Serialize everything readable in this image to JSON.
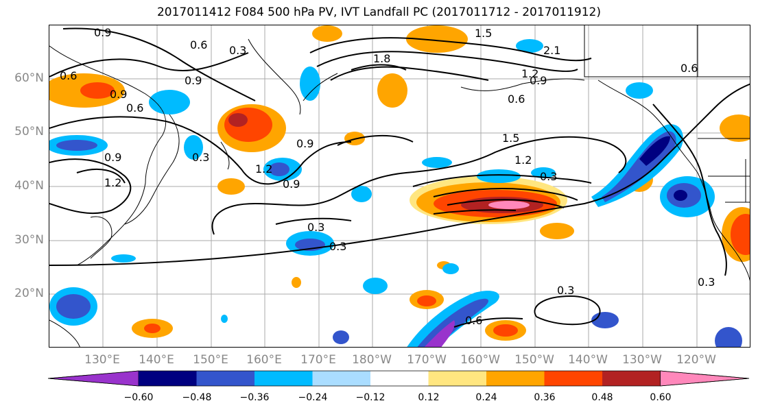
{
  "title": "2017011412 F084 500 hPa PV, IVT Landfall PC (2017011712 - 2017011912)",
  "lat_labels": [
    "60°N",
    "50°N",
    "40°N",
    "30°N",
    "20°N"
  ],
  "lon_labels": [
    "130°E",
    "140°E",
    "150°E",
    "160°E",
    "170°E",
    "180°W",
    "170°W",
    "160°W",
    "150°W",
    "140°W",
    "130°W",
    "120°W"
  ],
  "contour_labels": [
    "0.9",
    "0.6",
    "0.3",
    "1.8",
    "2.1",
    "1.5",
    "1.2",
    "0.9",
    "0.6",
    "0.6",
    "0.9",
    "0.6",
    "0.9",
    "0.6",
    "0.9",
    "1.2",
    "0.3",
    "0.9",
    "0.9",
    "1.2",
    "1.5",
    "1.2",
    "0.3",
    "0.3",
    "0.3",
    "0.3",
    "0.6",
    "0.3"
  ],
  "colorbar": {
    "ticks": [
      "−0.60",
      "−0.48",
      "−0.36",
      "−0.24",
      "−0.12",
      "0.12",
      "0.24",
      "0.36",
      "0.48",
      "0.60"
    ],
    "colors": [
      "#9933cc",
      "#000080",
      "#3355cc",
      "#00bbff",
      "#aaddff",
      "#ffffff",
      "#ffe680",
      "#ffa500",
      "#ff4500",
      "#b22222",
      "#ff88bb"
    ]
  }
}
